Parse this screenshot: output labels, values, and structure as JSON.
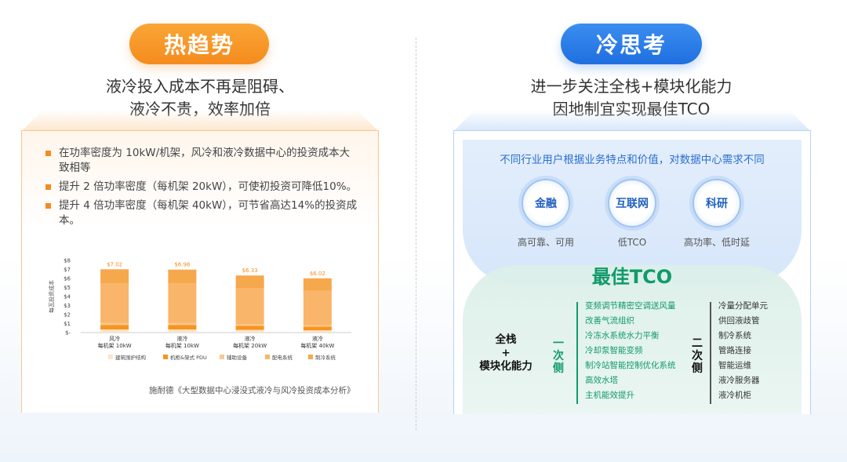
{
  "left": {
    "pill": "热趋势",
    "subtitle_line1": "液冷投入成本不再是阻碍、",
    "subtitle_line2": "液冷不贵，效率加倍",
    "bullets": [
      "在功率密度为 10kW/机架，风冷和液冷数据中心的投资成本大致相等",
      "提升 2 倍功率密度（每机架 20kW），可使初投资可降低10%。",
      "提升 4 倍功率密度（每机架 40kW），可节省高达14%的投资成本。"
    ],
    "source": "施耐德《大型数据中心浸没式液冷与风冷投资成本分析》"
  },
  "chart_data": {
    "type": "bar",
    "stacked": true,
    "ylabel": "每瓦投资成本",
    "ylim": [
      0,
      8
    ],
    "yticks": [
      "$-",
      "$1",
      "$2",
      "$3",
      "$4",
      "$5",
      "$6",
      "$7",
      "$8"
    ],
    "categories": [
      [
        "风冷",
        "每机架 10kW"
      ],
      [
        "液冷",
        "每机架 10kW"
      ],
      [
        "液冷",
        "每机架 20kW"
      ],
      [
        "液冷",
        "每机架 40kW"
      ]
    ],
    "totals": [
      7.02,
      6.98,
      6.33,
      6.02
    ],
    "total_labels": [
      "$7.02",
      "$6.98",
      "$6.33",
      "$6.02"
    ],
    "series": [
      {
        "name": "建筑围护结构",
        "color": "#fde3c8",
        "values": [
          0.35,
          0.35,
          0.3,
          0.25
        ]
      },
      {
        "name": "机柜&架式 PDU",
        "color": "#f7941e",
        "values": [
          0.5,
          0.5,
          0.45,
          0.4
        ]
      },
      {
        "name": "辅助设备",
        "color": "#fbc88f",
        "values": [
          0.2,
          0.2,
          0.15,
          0.15
        ]
      },
      {
        "name": "配电系统",
        "color": "#f9b56a",
        "values": [
          4.4,
          4.4,
          4.0,
          3.85
        ]
      },
      {
        "name": "制冷系统",
        "color": "#f6a84c",
        "values": [
          1.57,
          1.53,
          1.43,
          1.37
        ]
      }
    ],
    "legend": [
      "建筑围护结构",
      "机柜&架式 PDU",
      "辅助设备",
      "配电系统",
      "制冷系统"
    ],
    "legend_position": "bottom",
    "colors": {
      "accent": "#f58b1e"
    }
  },
  "right": {
    "pill": "冷思考",
    "subtitle_line1": "进一步关注全栈+模块化能力",
    "subtitle_line2": "因地制宜实现最佳TCO",
    "industry_line": "不同行业用户根据业务特点和价值，对数据中心需求不同",
    "circles": [
      {
        "name": "金融",
        "label": "高可靠、可用"
      },
      {
        "name": "互联网",
        "label": "低TCO"
      },
      {
        "name": "科研",
        "label": "高功率、低时延"
      }
    ],
    "tco_title": "最佳TCO",
    "stack_line1": "全栈",
    "stack_line2": "+",
    "stack_line3": "模块化能力",
    "primary_side": "一次侧",
    "secondary_side": "二次侧",
    "primary_items": [
      "变频调节精密空调送风量",
      "改善气流组织",
      "冷冻水系统水力平衡",
      "冷却泵智能变频",
      "制冷站智能控制优化系统",
      "高效水塔",
      "主机能效提升"
    ],
    "secondary_items": [
      "冷量分配单元",
      "供回液歧管",
      "制冷系统",
      "管路连接",
      "智能运维",
      "液冷服务器",
      "液冷机柜"
    ],
    "colors": {
      "blue": "#1f6fe0",
      "green": "#119a6b",
      "orange": "#f58b1e"
    }
  }
}
